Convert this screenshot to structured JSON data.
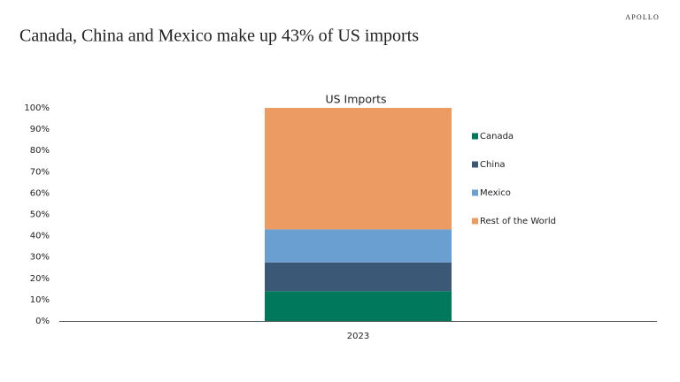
{
  "brand": "APOLLO",
  "title": "Canada, China and Mexico make up 43% of US imports",
  "chart_data": {
    "type": "stacked_bar",
    "title": "US Imports",
    "categories": [
      "2023"
    ],
    "series": [
      {
        "name": "Canada",
        "color": "#00785c",
        "values": [
          14
        ]
      },
      {
        "name": "China",
        "color": "#3b5876",
        "values": [
          13.5
        ]
      },
      {
        "name": "Mexico",
        "color": "#6a9fd1",
        "values": [
          15.5
        ]
      },
      {
        "name": "Rest of the World",
        "color": "#ec9c62",
        "values": [
          57
        ]
      }
    ],
    "ylim": [
      0,
      100
    ],
    "yticks": [
      {
        "value": 0,
        "label": "0%"
      },
      {
        "value": 10,
        "label": "10%"
      },
      {
        "value": 20,
        "label": "20%"
      },
      {
        "value": 30,
        "label": "30%"
      },
      {
        "value": 40,
        "label": "40%"
      },
      {
        "value": 50,
        "label": "50%"
      },
      {
        "value": 60,
        "label": "60%"
      },
      {
        "value": 70,
        "label": "70%"
      },
      {
        "value": 80,
        "label": "80%"
      },
      {
        "value": 90,
        "label": "90%"
      },
      {
        "value": 100,
        "label": "100%"
      }
    ],
    "grid": false,
    "legend": "right"
  }
}
